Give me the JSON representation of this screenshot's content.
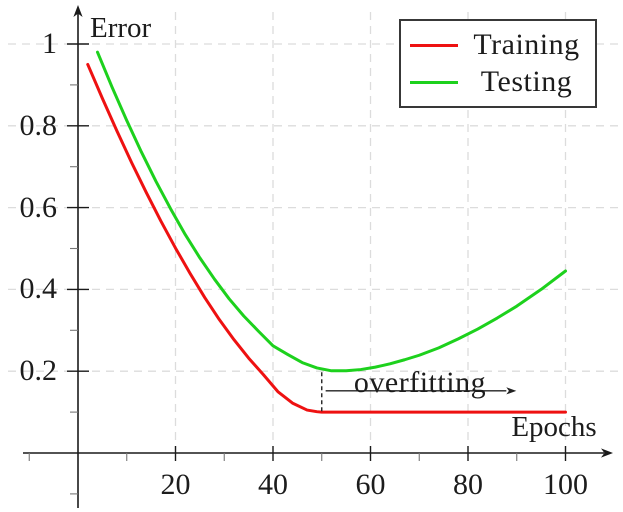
{
  "chart_data": {
    "type": "line",
    "title": "",
    "xlabel": "Epochs",
    "ylabel": "Error",
    "xlim": [
      0,
      110
    ],
    "ylim": [
      0,
      1.1
    ],
    "x_ticks": [
      20,
      40,
      60,
      80,
      100
    ],
    "x_tick_labels": [
      "20",
      "40",
      "60",
      "80",
      "100"
    ],
    "y_ticks": [
      0.2,
      0.4,
      0.6,
      0.8,
      1
    ],
    "y_tick_labels": [
      "0.2",
      "0.4",
      "0.6",
      "0.8",
      "1"
    ],
    "x_minor_ticks": [
      -10,
      10,
      30,
      50,
      70,
      90
    ],
    "y_minor_ticks": [
      -0.1,
      0.1,
      0.3,
      0.5,
      0.7,
      0.9
    ],
    "grid": {
      "style": "dashed",
      "color": "#dcdcdc"
    },
    "axis_color": "#1a1a1a",
    "legend_position": "top-right",
    "annotation": {
      "label": "overfitting",
      "dashed_line_x": 50,
      "dashed_line_y_from": 0.1,
      "dashed_line_y_to": 0.2,
      "arrow_from_x": 50.8,
      "arrow_to_x": 89.5,
      "arrow_y": 0.152
    },
    "series": [
      {
        "name": "Training",
        "color": "#ee1111",
        "x": [
          2,
          5,
          8,
          11,
          14,
          17,
          20,
          23,
          26,
          29,
          32,
          35,
          38,
          41,
          44,
          47,
          49,
          50,
          52,
          56,
          60,
          65,
          70,
          75,
          80,
          85,
          90,
          95,
          100
        ],
        "y": [
          0.95,
          0.867,
          0.787,
          0.71,
          0.637,
          0.567,
          0.501,
          0.439,
          0.38,
          0.326,
          0.277,
          0.232,
          0.192,
          0.15,
          0.122,
          0.105,
          0.101,
          0.1,
          0.1,
          0.1,
          0.1,
          0.1,
          0.1,
          0.1,
          0.1,
          0.1,
          0.1,
          0.1,
          0.1
        ]
      },
      {
        "name": "Testing",
        "color": "#1dd11d",
        "x": [
          4,
          7,
          10,
          13,
          16,
          19,
          22,
          25,
          28,
          31,
          34,
          37,
          40,
          43,
          46,
          49,
          52,
          55,
          58,
          61,
          64,
          67,
          70,
          74,
          78,
          82,
          86,
          90,
          95,
          100
        ],
        "y": [
          0.98,
          0.894,
          0.813,
          0.736,
          0.664,
          0.597,
          0.534,
          0.477,
          0.425,
          0.377,
          0.335,
          0.298,
          0.262,
          0.241,
          0.221,
          0.208,
          0.201,
          0.201,
          0.204,
          0.21,
          0.218,
          0.228,
          0.239,
          0.257,
          0.279,
          0.303,
          0.33,
          0.359,
          0.4,
          0.445
        ]
      }
    ]
  }
}
